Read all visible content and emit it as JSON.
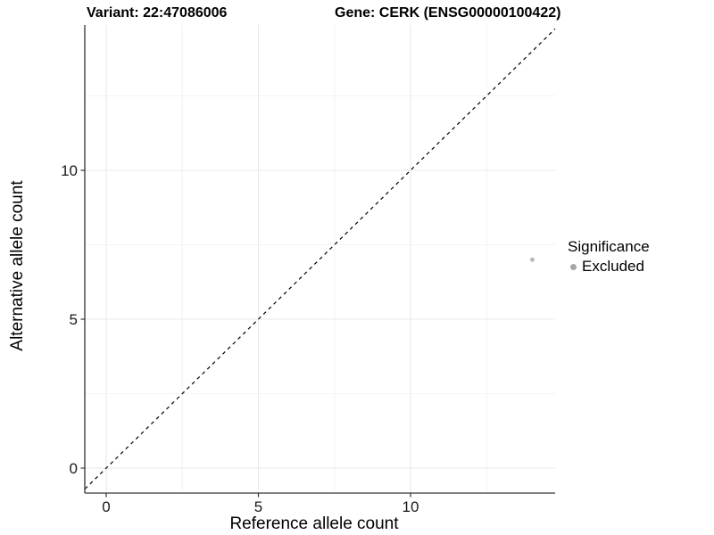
{
  "header": {
    "variant_title": "Variant: 22:47086006",
    "gene_title": "Gene: CERK (ENSG00000100422)"
  },
  "axes": {
    "x": {
      "label": "Reference allele count",
      "major_ticks": [
        0,
        5,
        10
      ],
      "minor_ticks": [
        2.5,
        7.5,
        12.5
      ]
    },
    "y": {
      "label": "Alternative allele count",
      "major_ticks": [
        0,
        5,
        10
      ],
      "minor_ticks": [
        2.5,
        7.5,
        12.5
      ]
    }
  },
  "legend": {
    "title": "Significance",
    "items": [
      {
        "label": "Excluded",
        "color": "#a6a6a6"
      }
    ]
  },
  "colors": {
    "background": "#ffffff",
    "grid_major": "#e9e9e9",
    "grid_minor": "#f4f4f4",
    "axis_line": "#333333",
    "tick_mark": "#333333",
    "tick_text": "#1a1a1a",
    "point": "#b9b9b9",
    "identity_line": "#000000"
  },
  "chart_data": {
    "type": "scatter",
    "title": "Variant: 22:47086006 | Gene: CERK (ENSG00000100422)",
    "xlabel": "Reference allele count",
    "ylabel": "Alternative allele count",
    "xlim": [
      -0.7,
      14.75
    ],
    "ylim": [
      -0.85,
      15.0
    ],
    "x_ticks": [
      0,
      5,
      10
    ],
    "y_ticks": [
      0,
      5,
      10
    ],
    "minor_tick_interval": 2.5,
    "grid": "major and minor gridlines, very light gray on white panel",
    "legend_position": "right-middle",
    "series": [
      {
        "name": "Excluded",
        "color": "#b9b9b9",
        "point_radius_px": 2.5,
        "points": [
          [
            14,
            7
          ]
        ]
      }
    ],
    "annotations": [
      {
        "type": "abline",
        "slope": 1,
        "intercept": 0,
        "style": "dashed",
        "color": "#000000",
        "note": "y = x identity line"
      }
    ]
  }
}
